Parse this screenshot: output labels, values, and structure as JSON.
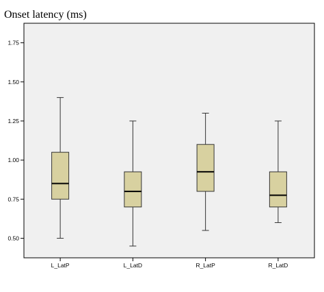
{
  "chart_data": {
    "type": "boxplot",
    "title": "",
    "ylabel": "Onset latency (ms)",
    "xlabel": "",
    "ylim": [
      0.375,
      1.875
    ],
    "yticks": [
      0.5,
      0.75,
      1.0,
      1.25,
      1.5,
      1.75
    ],
    "ytick_labels": [
      "0.50",
      "0.75",
      "1.00",
      "1.25",
      "1.50",
      "1.75"
    ],
    "categories": [
      "L_LatP",
      "L_LatD",
      "R_LatP",
      "R_LatD"
    ],
    "boxes": [
      {
        "name": "L_LatP",
        "min": 0.5,
        "q1": 0.75,
        "median": 0.85,
        "q3": 1.05,
        "max": 1.4
      },
      {
        "name": "L_LatD",
        "min": 0.45,
        "q1": 0.7,
        "median": 0.8,
        "q3": 0.925,
        "max": 1.25
      },
      {
        "name": "R_LatP",
        "min": 0.55,
        "q1": 0.8,
        "median": 0.925,
        "q3": 1.1,
        "max": 1.3
      },
      {
        "name": "R_LatD",
        "min": 0.6,
        "q1": 0.7,
        "median": 0.775,
        "q3": 0.925,
        "max": 1.25
      }
    ],
    "grid": false,
    "legend": "none",
    "colors": {
      "plot_background": "#f0f0f0",
      "box_fill": "#d8d1a0",
      "box_stroke": "#333333",
      "axis": "#000000"
    }
  }
}
